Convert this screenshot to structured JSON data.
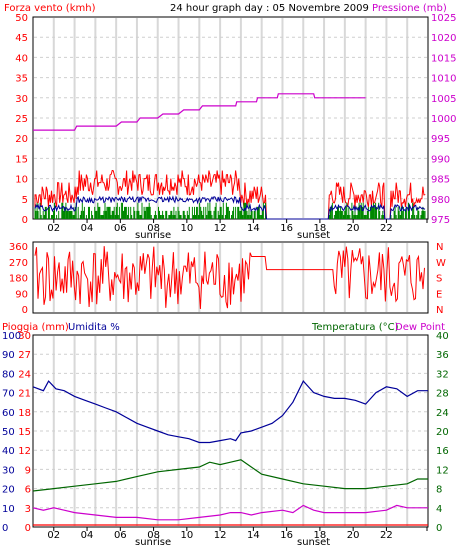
{
  "colors": {
    "wind": "#ff0000",
    "wind_avg": "#000099",
    "wind_green": "#008800",
    "pressure": "#cc00cc",
    "rain": "#ff0000",
    "humidity": "#000099",
    "temperature": "#006600",
    "dewpoint": "#cc00cc",
    "direction": "#ff0000",
    "pressure_axis": "#cc00cc",
    "temp_axis": "#006600",
    "grid": "#cccccc"
  },
  "chart_data": [
    {
      "type": "line",
      "title": "24 hour graph day : 05 Novembre 2009",
      "left_label": "Forza vento (kmh)",
      "right_label": "Pressione (mb)",
      "yleft_ticks": [
        "0",
        "5",
        "10",
        "15",
        "20",
        "25",
        "30",
        "35",
        "40",
        "45",
        "50"
      ],
      "yright_ticks": [
        "975",
        "980",
        "985",
        "990",
        "995",
        "1000",
        "1005",
        "1010",
        "1015",
        "1020",
        "1025"
      ],
      "ylim_left": [
        0,
        50
      ],
      "ylim_right": [
        975,
        1025
      ],
      "x_ticks": [
        "02",
        "04",
        "06",
        "08",
        "10",
        "12",
        "14",
        "16",
        "18",
        "20",
        "22"
      ],
      "x_extra_labels": [
        "sunrise",
        "sunset"
      ],
      "series": [
        {
          "color_key": "pressure",
          "values": [
            [
              0,
              997
            ],
            [
              4,
              997
            ],
            [
              4.2,
              998
            ],
            [
              8,
              998
            ],
            [
              8.5,
              999
            ],
            [
              10,
              999
            ],
            [
              10.3,
              1000
            ],
            [
              12,
              1000
            ],
            [
              12.5,
              1001
            ],
            [
              14,
              1001
            ],
            [
              14.5,
              1002
            ],
            [
              16,
              1002
            ],
            [
              16.3,
              1003
            ],
            [
              19.5,
              1003
            ],
            [
              19.6,
              1004
            ],
            [
              21.5,
              1004
            ],
            [
              21.6,
              1005
            ],
            [
              23.5,
              1005
            ],
            [
              23.6,
              1006
            ],
            [
              27,
              1006
            ],
            [
              27.1,
              1005
            ],
            [
              32,
              1005
            ]
          ]
        }
      ]
    },
    {
      "type": "line",
      "left_ticks": [
        "0",
        "90",
        "180",
        "270",
        "360"
      ],
      "right_labels": [
        "N",
        "W",
        "S",
        "E",
        "N"
      ],
      "ylim": [
        0,
        360
      ]
    },
    {
      "type": "line",
      "left_label_rain": "Pioggia (mm)",
      "left_label_hum": "Umidita %",
      "right_label_temp": "Temperatura (°C)",
      "right_label_dew": "Dew Point",
      "rain_ticks": [
        "0",
        "3",
        "6",
        "9",
        "12",
        "15",
        "18",
        "21",
        "24",
        "27",
        "30"
      ],
      "humidity_ticks": [
        "0",
        "10",
        "20",
        "30",
        "40",
        "50",
        "60",
        "70",
        "80",
        "90",
        "100"
      ],
      "temp_ticks": [
        "0",
        "4",
        "8",
        "12",
        "16",
        "20",
        "24",
        "28",
        "32",
        "36",
        "40"
      ],
      "ylim_temp": [
        0,
        40
      ],
      "ylim_humidity": [
        0,
        100
      ],
      "x_ticks": [
        "02",
        "04",
        "06",
        "08",
        "10",
        "12",
        "14",
        "16",
        "18",
        "20",
        "22"
      ],
      "x_extra_labels": [
        "sunrise",
        "sunset"
      ],
      "series": [
        {
          "name": "Umidita %",
          "color_key": "humidity",
          "axis": "humidity",
          "values": [
            [
              0,
              73
            ],
            [
              1,
              71
            ],
            [
              1.5,
              76
            ],
            [
              2.2,
              72
            ],
            [
              3,
              71
            ],
            [
              4,
              68
            ],
            [
              5,
              66
            ],
            [
              6,
              64
            ],
            [
              7,
              62
            ],
            [
              8,
              60
            ],
            [
              9,
              57
            ],
            [
              10,
              54
            ],
            [
              11,
              52
            ],
            [
              12,
              50
            ],
            [
              13,
              48
            ],
            [
              14,
              47
            ],
            [
              15,
              46
            ],
            [
              16,
              44
            ],
            [
              17,
              44
            ],
            [
              18,
              45
            ],
            [
              19,
              46
            ],
            [
              19.5,
              45
            ],
            [
              20,
              49
            ],
            [
              21,
              50
            ],
            [
              22,
              52
            ],
            [
              23,
              54
            ],
            [
              24,
              58
            ],
            [
              25,
              65
            ],
            [
              26,
              76
            ],
            [
              27,
              70
            ],
            [
              28,
              68
            ],
            [
              29,
              67
            ],
            [
              30,
              67
            ],
            [
              31,
              66
            ],
            [
              32,
              64
            ],
            [
              33,
              70
            ],
            [
              34,
              73
            ],
            [
              35,
              72
            ],
            [
              36,
              68
            ],
            [
              37,
              71
            ],
            [
              38,
              71
            ]
          ]
        },
        {
          "name": "Temperatura (°C)",
          "color_key": "temperature",
          "axis": "temp",
          "values": [
            [
              0,
              7.5
            ],
            [
              2,
              8
            ],
            [
              4,
              8.5
            ],
            [
              6,
              9
            ],
            [
              8,
              9.5
            ],
            [
              10,
              10.5
            ],
            [
              12,
              11.5
            ],
            [
              14,
              12
            ],
            [
              16,
              12.5
            ],
            [
              17,
              13.5
            ],
            [
              18,
              13
            ],
            [
              19,
              13.5
            ],
            [
              20,
              14
            ],
            [
              21,
              12.5
            ],
            [
              22,
              11
            ],
            [
              24,
              10
            ],
            [
              26,
              9
            ],
            [
              28,
              8.5
            ],
            [
              30,
              8
            ],
            [
              32,
              8
            ],
            [
              34,
              8.5
            ],
            [
              36,
              9
            ],
            [
              37,
              10
            ],
            [
              38,
              10
            ]
          ]
        },
        {
          "name": "Dew Point",
          "color_key": "dewpoint",
          "axis": "temp",
          "values": [
            [
              0,
              4
            ],
            [
              1,
              3.5
            ],
            [
              2,
              4
            ],
            [
              3,
              3.5
            ],
            [
              4,
              3
            ],
            [
              6,
              2.5
            ],
            [
              8,
              2
            ],
            [
              10,
              2
            ],
            [
              12,
              1.5
            ],
            [
              14,
              1.5
            ],
            [
              16,
              2
            ],
            [
              18,
              2.5
            ],
            [
              19,
              3
            ],
            [
              20,
              3
            ],
            [
              21,
              2.5
            ],
            [
              22,
              3
            ],
            [
              24,
              3.5
            ],
            [
              25,
              3
            ],
            [
              26,
              4.5
            ],
            [
              27,
              3.5
            ],
            [
              28,
              3
            ],
            [
              30,
              3
            ],
            [
              32,
              3
            ],
            [
              34,
              3.5
            ],
            [
              35,
              4.5
            ],
            [
              36,
              4
            ],
            [
              37,
              4
            ],
            [
              38,
              4
            ]
          ]
        },
        {
          "name": "Pioggia (mm)",
          "color_key": "rain",
          "axis": "rain",
          "values": [
            [
              0,
              0
            ],
            [
              38,
              0
            ]
          ]
        }
      ]
    }
  ]
}
